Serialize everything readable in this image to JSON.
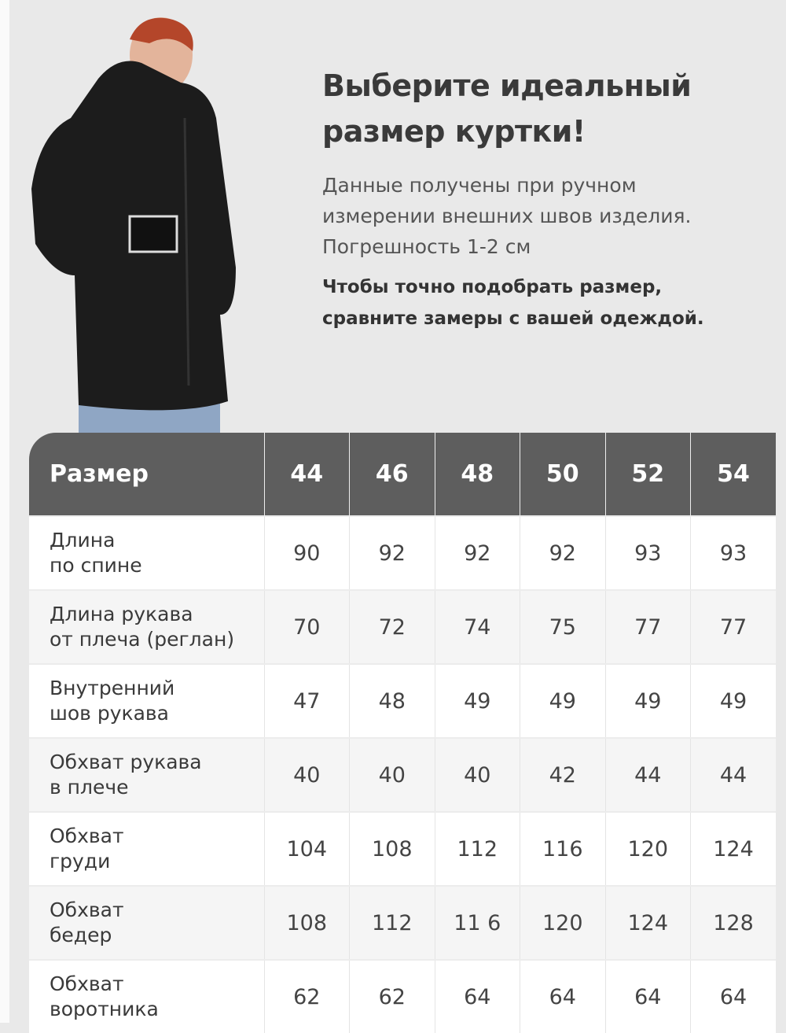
{
  "heading": {
    "line1": "Выберите идеальный",
    "line2": "размер куртки!"
  },
  "description": {
    "line1": "Данные получены при ручном",
    "line2": "измерении внешних швов изделия.",
    "line3": "Погрешность 1-2 см"
  },
  "note": {
    "line1": "Чтобы точно подобрать размер,",
    "line2": "сравните замеры с вашей одеждой."
  },
  "table": {
    "header_label": "Размер",
    "sizes": [
      "44",
      "46",
      "48",
      "50",
      "52",
      "54"
    ],
    "rows": [
      {
        "label1": "Длина",
        "label2": "по спине",
        "values": [
          "90",
          "92",
          "92",
          "92",
          "93",
          "93"
        ]
      },
      {
        "label1": "Длина рукава",
        "label2": "от плеча (реглан)",
        "values": [
          "70",
          "72",
          "74",
          "75",
          "77",
          "77"
        ]
      },
      {
        "label1": "Внутренний",
        "label2": "шов рукава",
        "values": [
          "47",
          "48",
          "49",
          "49",
          "49",
          "49"
        ]
      },
      {
        "label1": "Обхват рукава",
        "label2": "в плече",
        "values": [
          "40",
          "40",
          "40",
          "42",
          "44",
          "44"
        ]
      },
      {
        "label1": "Обхват",
        "label2": "груди",
        "values": [
          "104",
          "108",
          "112",
          "116",
          "120",
          "124"
        ]
      },
      {
        "label1": "Обхват",
        "label2": "бедер",
        "values": [
          "108",
          "112",
          "11 6",
          "120",
          "124",
          "128"
        ]
      },
      {
        "label1": "Обхват",
        "label2": "воротника",
        "values": [
          "62",
          "62",
          "64",
          "64",
          "64",
          "64"
        ]
      }
    ]
  },
  "colors": {
    "header_bg": "#5e5e5e",
    "background": "#e9e9e9",
    "jacket": "#1c1c1c"
  }
}
